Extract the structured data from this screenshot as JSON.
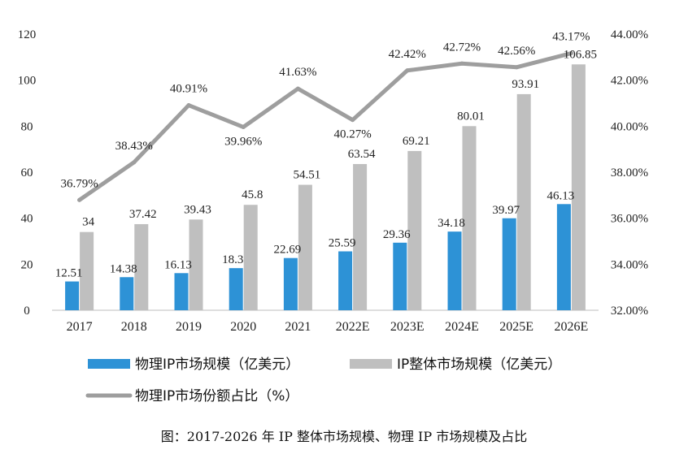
{
  "chart_data": {
    "type": "bar",
    "categories": [
      "2017",
      "2018",
      "2019",
      "2020",
      "2021",
      "2022E",
      "2023E",
      "2024E",
      "2025E",
      "2026E"
    ],
    "series": [
      {
        "name": "物理IP市场规模（亿美元）",
        "kind": "bar",
        "axis": "left",
        "color": "#2d92d6",
        "values": [
          12.51,
          14.38,
          16.13,
          18.3,
          22.69,
          25.59,
          29.36,
          34.18,
          39.97,
          46.13
        ],
        "labels": [
          "12.51",
          "14.38",
          "16.13",
          "18.3",
          "22.69",
          "25.59",
          "29.36",
          "34.18",
          "39.97",
          "46.13"
        ]
      },
      {
        "name": "IP整体市场规模（亿美元）",
        "kind": "bar",
        "axis": "left",
        "color": "#bfbfbf",
        "values": [
          34,
          37.42,
          39.43,
          45.8,
          54.51,
          63.54,
          69.21,
          80.01,
          93.91,
          106.85
        ],
        "labels": [
          "34",
          "37.42",
          "39.43",
          "45.8",
          "54.51",
          "63.54",
          "69.21",
          "80.01",
          "93.91",
          "106.85"
        ]
      },
      {
        "name": "物理IP市场份额占比（%）",
        "kind": "line",
        "axis": "right",
        "color": "#9e9e9e",
        "values": [
          36.79,
          38.43,
          40.91,
          39.96,
          41.63,
          40.27,
          42.42,
          42.72,
          42.56,
          43.17
        ],
        "labels": [
          "36.79%",
          "38.43%",
          "40.91%",
          "39.96%",
          "41.63%",
          "40.27%",
          "42.42%",
          "42.72%",
          "42.56%",
          "43.17%"
        ]
      }
    ],
    "y_left": {
      "ylim": [
        0,
        120
      ],
      "ticks": [
        0,
        20,
        40,
        60,
        80,
        100,
        120
      ],
      "tick_labels": [
        "0",
        "20",
        "40",
        "60",
        "80",
        "100",
        "120"
      ]
    },
    "y_right": {
      "ylim": [
        32,
        44
      ],
      "ticks": [
        32,
        34,
        36,
        38,
        40,
        42,
        44
      ],
      "tick_labels": [
        "32.00%",
        "34.00%",
        "36.00%",
        "38.00%",
        "40.00%",
        "42.00%",
        "44.00%"
      ]
    },
    "legend_position": "bottom",
    "title": "",
    "caption": "图：2017-2026 年 IP 整体市场规模、物理 IP 市场规模及占比"
  }
}
